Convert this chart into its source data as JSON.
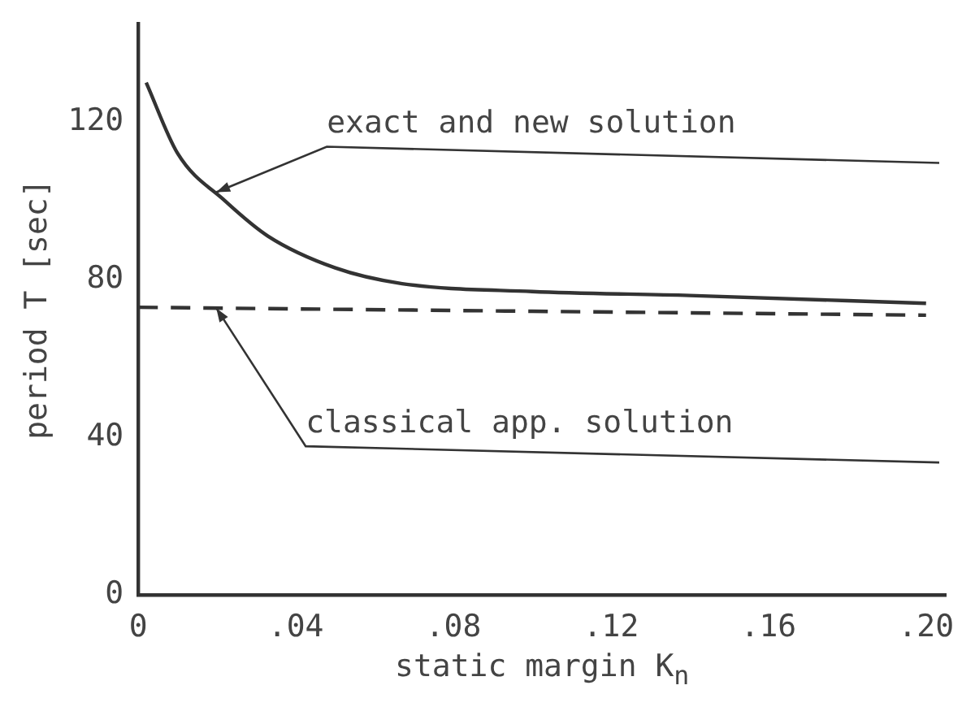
{
  "chart_data": {
    "type": "line",
    "xlabel": "static margin K$_{n}$",
    "ylabel": "period T [sec]",
    "xlim": [
      0,
      0.205
    ],
    "ylim": [
      0,
      145
    ],
    "xticks": [
      0,
      {
        "value": 0.04,
        "label": ".04"
      },
      {
        "value": 0.08,
        "label": ".08"
      },
      {
        "value": 0.12,
        "label": ".12"
      },
      {
        "value": 0.16,
        "label": ".16"
      },
      {
        "value": 0.2,
        "label": ".20"
      }
    ],
    "yticks": [
      0,
      40,
      80,
      120
    ],
    "series": [
      {
        "color": "#333333",
        "line_style": "solid",
        "x": [
          0.002,
          0.01,
          0.022,
          0.033,
          0.05,
          0.067,
          0.1,
          0.14,
          0.2
        ],
        "values": [
          130,
          112,
          100,
          91,
          83,
          79,
          77,
          76,
          74
        ]
      },
      {
        "color": "#333333",
        "line_style": "dashed",
        "x": [
          0,
          0.1,
          0.2
        ],
        "values": [
          73,
          72,
          71
        ]
      }
    ],
    "annotations": [
      "exact and new solution",
      "classical app. solution"
    ],
    "grid": false,
    "legend": false,
    "marker": "none"
  }
}
